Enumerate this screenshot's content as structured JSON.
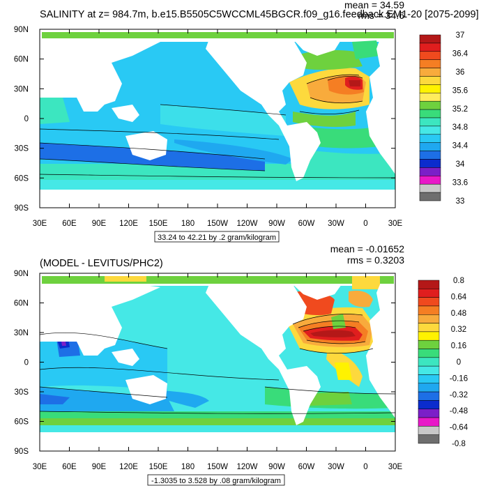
{
  "chart_data": [
    {
      "type": "heatmap",
      "title": "SALINITY at z= 984.7m, b.e15.B5505C5WCCML45BGCR.f09_g16.feedback.EM1-20 [2075-2099]",
      "stats": {
        "mean": "mean = 34.59",
        "rms": "rms = 34.6"
      },
      "range_label": "33.24 to 42.21 by .2 gram/kilogram",
      "x_ticks": [
        "30E",
        "60E",
        "90E",
        "120E",
        "150E",
        "180",
        "150W",
        "120W",
        "90W",
        "60W",
        "30W",
        "0",
        "30E"
      ],
      "y_ticks": [
        "90N",
        "60N",
        "30N",
        "0",
        "30S",
        "60S",
        "90S"
      ],
      "colorbar": {
        "labels": [
          "37",
          "36.4",
          "36",
          "35.6",
          "35.2",
          "34.8",
          "34.4",
          "34",
          "33.6",
          "33"
        ],
        "colors": [
          "#b41818",
          "#e01e1e",
          "#f04a1e",
          "#f57e23",
          "#f8ab3c",
          "#fdd93d",
          "#fff200",
          "#ffec5c",
          "#6ed13e",
          "#39dc7a",
          "#3ce6c0",
          "#45e8e6",
          "#29c9f4",
          "#1fa8f0",
          "#1d6fe6",
          "#0b2ccd",
          "#7b1fc8",
          "#e818c8",
          "#c8c8c8",
          "#6e6e6e"
        ]
      }
    },
    {
      "type": "heatmap",
      "title": "(MODEL - LEVITUS/PHC2)",
      "stats": {
        "mean": "mean = -0.01652",
        "rms": "rms = 0.3203"
      },
      "range_label": "-1.3035 to 3.528 by .08 gram/kilogram",
      "x_ticks": [
        "30E",
        "60E",
        "90E",
        "120E",
        "150E",
        "180",
        "150W",
        "120W",
        "90W",
        "60W",
        "30W",
        "0",
        "30E"
      ],
      "y_ticks": [
        "90N",
        "60N",
        "30N",
        "0",
        "30S",
        "60S",
        "90S"
      ],
      "colorbar": {
        "labels": [
          "0.8",
          "0.64",
          "0.48",
          "0.32",
          "0.16",
          "0",
          "-0.16",
          "-0.32",
          "-0.48",
          "-0.64",
          "-0.8"
        ],
        "colors": [
          "#b41818",
          "#e01e1e",
          "#f04a1e",
          "#f57e23",
          "#f8ab3c",
          "#fdd93d",
          "#fff200",
          "#6ed13e",
          "#39dc7a",
          "#3ce6c0",
          "#45e8e6",
          "#29c9f4",
          "#1fa8f0",
          "#1d6fe6",
          "#0b2ccd",
          "#7b1fc8",
          "#e818c8",
          "#c8c8c8",
          "#6e6e6e"
        ]
      }
    }
  ]
}
